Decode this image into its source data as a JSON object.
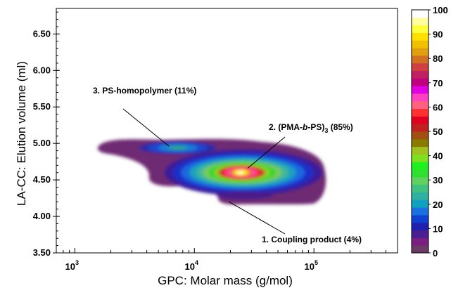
{
  "chart_data": {
    "type": "heatmap",
    "xlabel": "GPC: Molar mass (g/mol)",
    "ylabel": "LA-CC: Elution volume (ml)",
    "x_scale": "log",
    "xlim": [
      700,
      500000
    ],
    "ylim": [
      3.5,
      6.85
    ],
    "x_ticks": [
      {
        "value": 1000,
        "base": "10",
        "exp": "3"
      },
      {
        "value": 10000,
        "base": "10",
        "exp": "4"
      },
      {
        "value": 100000,
        "base": "10",
        "exp": "5"
      }
    ],
    "y_ticks": [
      {
        "value": 3.5,
        "label": "3.50"
      },
      {
        "value": 4.0,
        "label": "4.00"
      },
      {
        "value": 4.5,
        "label": "4.50"
      },
      {
        "value": 5.0,
        "label": "5.00"
      },
      {
        "value": 5.5,
        "label": "5.50"
      },
      {
        "value": 6.0,
        "label": "6.00"
      },
      {
        "value": 6.5,
        "label": "6.50"
      }
    ],
    "colorbar": {
      "min": 0,
      "max": 100,
      "labels": [
        "0",
        "10",
        "20",
        "30",
        "40",
        "50",
        "60",
        "70",
        "80",
        "90",
        "100"
      ],
      "colors": [
        "#6b3a66",
        "#7a1f80",
        "#4a2090",
        "#2020b0",
        "#1040d0",
        "#1a70e0",
        "#10a0c0",
        "#30b0a0",
        "#40c080",
        "#60d060",
        "#30e030",
        "#20f020",
        "#80e020",
        "#a0c020",
        "#8a7a00",
        "#a05010",
        "#c02020",
        "#e00020",
        "#ff3030",
        "#ff6080",
        "#ff40c0",
        "#e000e0",
        "#c00080",
        "#c02060",
        "#d04040",
        "#d07020",
        "#e0a010",
        "#f0c000",
        "#ffe000",
        "#ffff40",
        "#ffffa0",
        "#ffffff"
      ]
    },
    "annotations": [
      {
        "label": "3. PS-homopolymer (11%)",
        "point": [
          6500,
          4.94
        ]
      },
      {
        "label": "2. (PMA-",
        "label_italic": "b",
        "label_rest": "-PS)",
        "subscript": "3",
        "label_tail": " (85%)",
        "point": [
          25000,
          4.63
        ]
      },
      {
        "label": "1. Coupling product (4%)",
        "point": [
          20000,
          4.22
        ]
      }
    ],
    "peaks": [
      {
        "name": "(PMA-b-PS)3",
        "x": 25000,
        "y": 4.62,
        "intensity": 100,
        "share_percent": 85
      },
      {
        "name": "PS-homopolymer",
        "x": 6500,
        "y": 4.94,
        "intensity": 35,
        "share_percent": 11
      },
      {
        "name": "Coupling product",
        "x": 20000,
        "y": 4.25,
        "intensity": 10,
        "share_percent": 4
      }
    ]
  }
}
